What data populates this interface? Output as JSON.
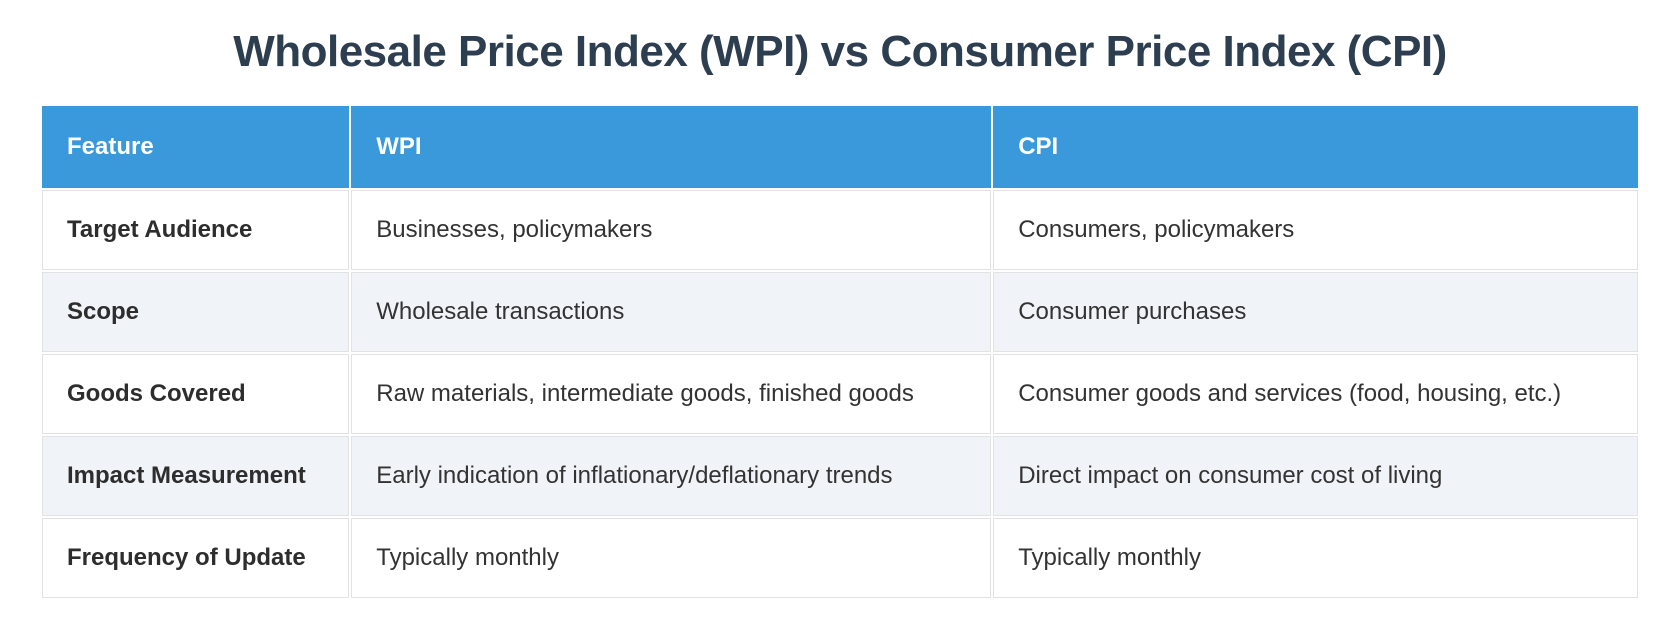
{
  "title": "Wholesale Price Index (WPI) vs Consumer Price Index (CPI)",
  "colors": {
    "header_bg": "#3a99db",
    "header_text": "#ffffff",
    "stripe_row_bg": "#f0f3f8",
    "cell_border": "#e2e2e2",
    "title_text": "#2c3e50",
    "body_text": "#333333"
  },
  "table": {
    "columns": [
      "Feature",
      "WPI",
      "CPI"
    ],
    "rows": [
      {
        "feature": "Target Audience",
        "wpi": "Businesses, policymakers",
        "cpi": "Consumers, policymakers"
      },
      {
        "feature": "Scope",
        "wpi": "Wholesale transactions",
        "cpi": "Consumer purchases"
      },
      {
        "feature": "Goods Covered",
        "wpi": "Raw materials, intermediate goods, finished goods",
        "cpi": "Consumer goods and services (food, housing, etc.)"
      },
      {
        "feature": "Impact Measurement",
        "wpi": "Early indication of inflationary/deflationary trends",
        "cpi": "Direct impact on consumer cost of living"
      },
      {
        "feature": "Frequency of Update",
        "wpi": "Typically monthly",
        "cpi": "Typically monthly"
      }
    ]
  }
}
